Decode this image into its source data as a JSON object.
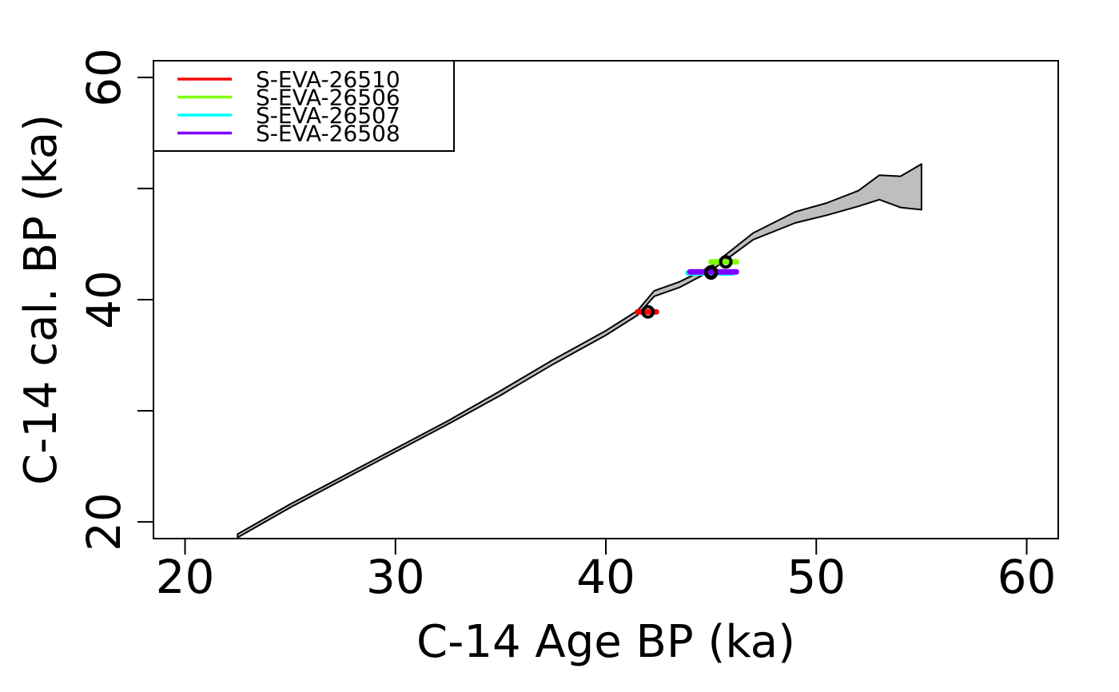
{
  "chart_data": {
    "type": "line",
    "xlabel": "C-14 Age BP (ka)",
    "ylabel": "C-14 cal. BP (ka)",
    "xlim": [
      18.5,
      61.5
    ],
    "ylim": [
      18.5,
      61.5
    ],
    "x_ticks": [
      20,
      30,
      40,
      50,
      60
    ],
    "y_ticks": [
      20,
      30,
      40,
      50,
      60
    ],
    "x_tick_labels": [
      "20",
      "30",
      "40",
      "50",
      "60"
    ],
    "y_tick_labels": [
      "20",
      "",
      "40",
      "",
      "60"
    ],
    "legend": {
      "position": "top-left"
    },
    "calibration_band": {
      "color": "#bebebe",
      "x": [
        22.5,
        25,
        27.5,
        30,
        32.5,
        35,
        37.5,
        40,
        41.5,
        42.3,
        43.5,
        45,
        47,
        49,
        50.5,
        52,
        53,
        54,
        55
      ],
      "lower": [
        18.6,
        21.3,
        23.8,
        26.3,
        28.8,
        31.4,
        34.2,
        36.8,
        38.6,
        40.3,
        41.1,
        42.6,
        45.4,
        46.9,
        47.6,
        48.4,
        49.0,
        48.3,
        48.1
      ],
      "upper": [
        18.9,
        21.6,
        24.1,
        26.6,
        29.1,
        31.8,
        34.6,
        37.2,
        39.0,
        40.8,
        41.6,
        43.0,
        46.0,
        47.9,
        48.7,
        49.8,
        51.2,
        51.1,
        52.2
      ]
    },
    "series": [
      {
        "name": "S-EVA-26510",
        "color": "#ff0000",
        "age": 42.0,
        "age_min": 41.5,
        "age_max": 42.4,
        "cal": 38.9
      },
      {
        "name": "S-EVA-26506",
        "color": "#80ff00",
        "age": 45.7,
        "age_min": 45.0,
        "age_max": 46.2,
        "cal": 43.4
      },
      {
        "name": "S-EVA-26507",
        "color": "#00ffff",
        "age": 45.0,
        "age_min": 43.9,
        "age_max": 46.0,
        "cal": 42.4
      },
      {
        "name": "S-EVA-26508",
        "color": "#8000ff",
        "age": 45.0,
        "age_min": 44.0,
        "age_max": 46.2,
        "cal": 42.5
      }
    ]
  }
}
